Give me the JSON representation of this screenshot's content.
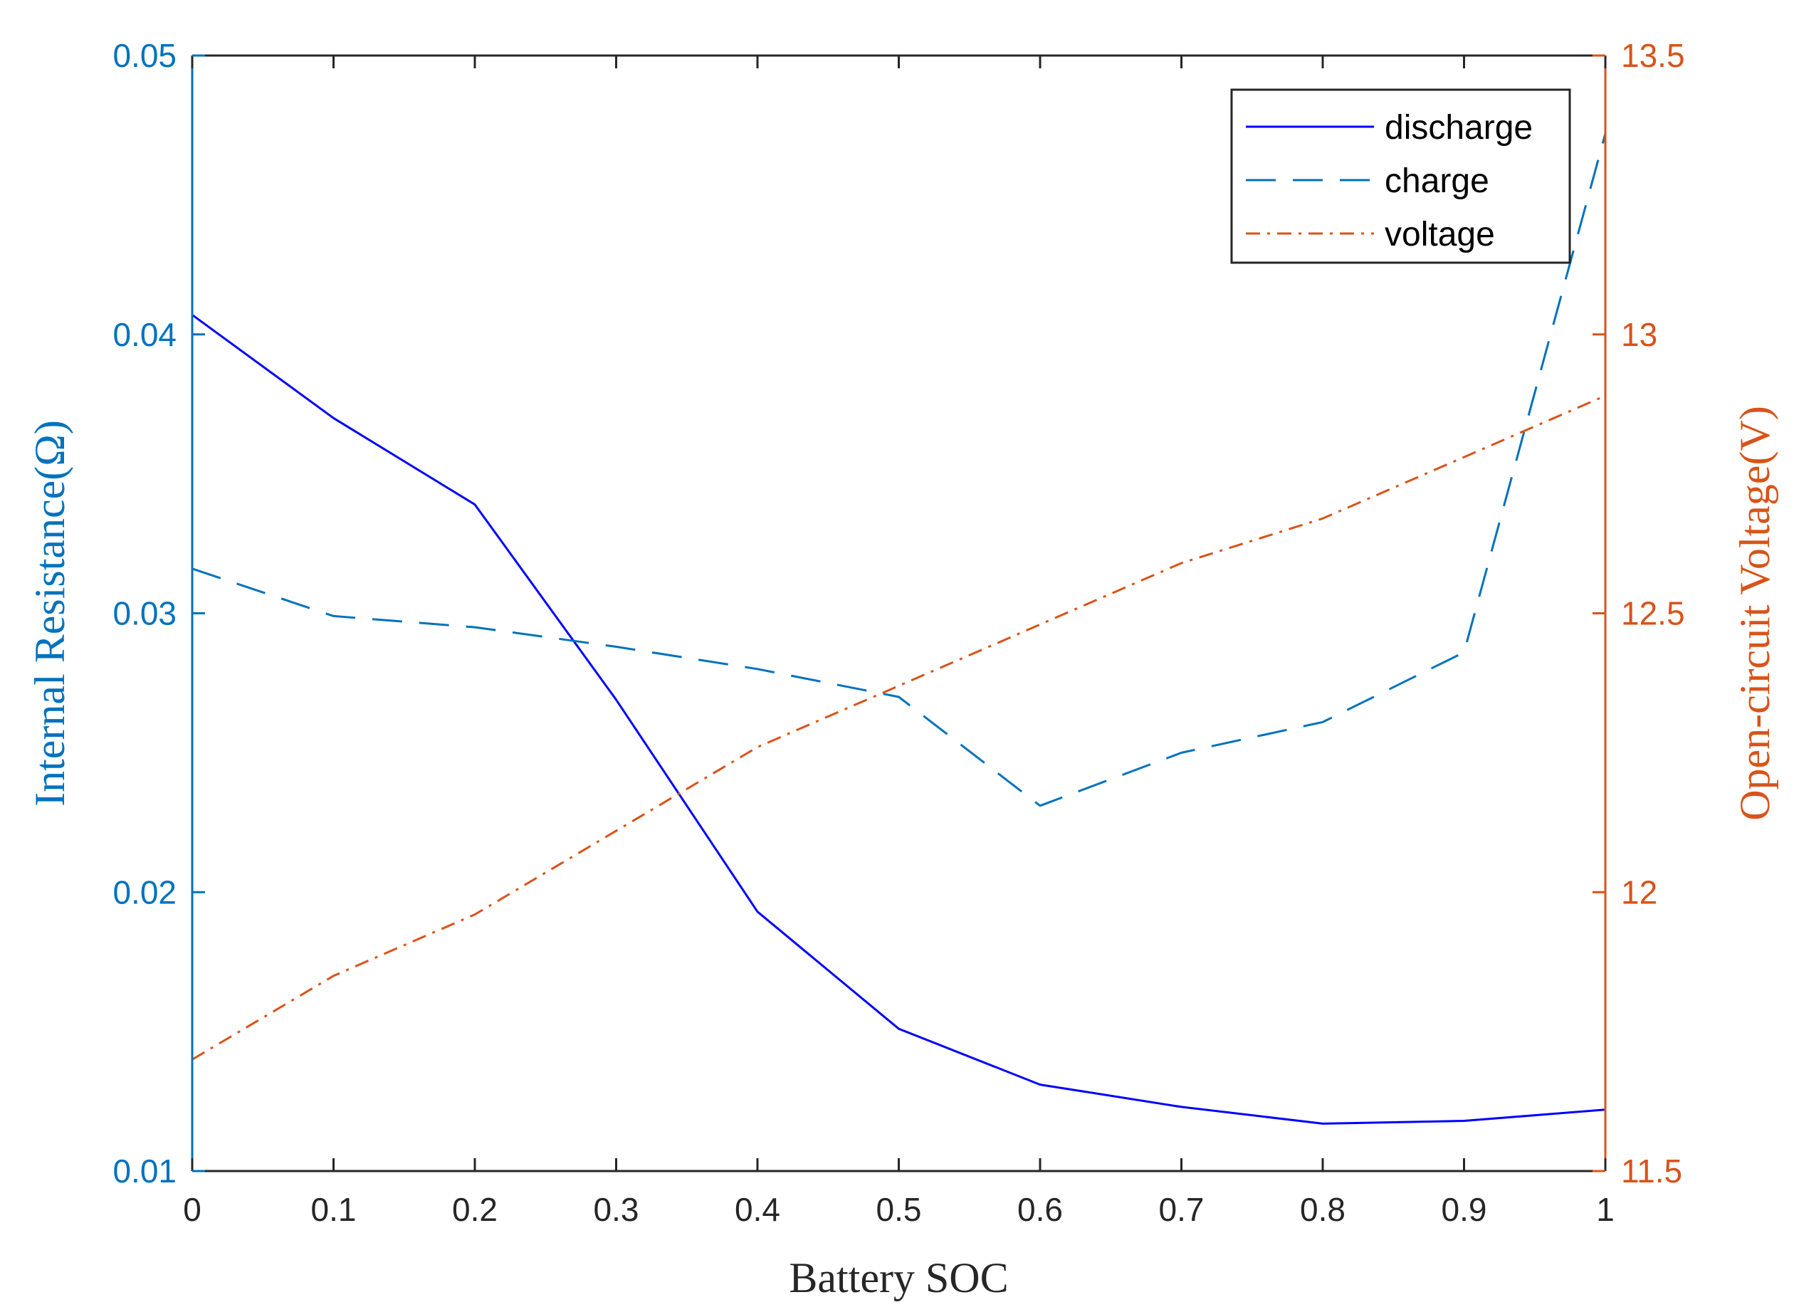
{
  "chart_data": {
    "type": "line",
    "title": "",
    "xlabel": "Battery SOC",
    "ylabel_left": "Internal Resistance(Ω)",
    "ylabel_right": "Open-circuit Voltage(V)",
    "xlim": [
      0,
      1
    ],
    "ylim_left": [
      0.01,
      0.05
    ],
    "ylim_right": [
      11.5,
      13.5
    ],
    "x_ticks": [
      0,
      0.1,
      0.2,
      0.3,
      0.4,
      0.5,
      0.6,
      0.7,
      0.8,
      0.9,
      1
    ],
    "x_tick_labels": [
      "0",
      "0.1",
      "0.2",
      "0.3",
      "0.4",
      "0.5",
      "0.6",
      "0.7",
      "0.8",
      "0.9",
      "1"
    ],
    "y_left_ticks": [
      0.01,
      0.02,
      0.03,
      0.04,
      0.05
    ],
    "y_left_tick_labels": [
      "0.01",
      "0.02",
      "0.03",
      "0.04",
      "0.05"
    ],
    "y_right_ticks": [
      11.5,
      12,
      12.5,
      13,
      13.5
    ],
    "y_right_tick_labels": [
      "11.5",
      "12",
      "12.5",
      "13",
      "13.5"
    ],
    "grid": false,
    "legend_position": "top-right",
    "x": [
      0,
      0.1,
      0.2,
      0.3,
      0.4,
      0.5,
      0.6,
      0.7,
      0.8,
      0.9,
      1
    ],
    "series": [
      {
        "name": "discharge",
        "axis": "left",
        "style": "solid",
        "color": "#0000ff",
        "values": [
          0.0407,
          0.037,
          0.0339,
          0.0269,
          0.0193,
          0.0151,
          0.0131,
          0.0123,
          0.0117,
          0.0118,
          0.0122
        ]
      },
      {
        "name": "charge",
        "axis": "left",
        "style": "dashed",
        "color": "#0072bd",
        "values": [
          0.0316,
          0.0299,
          0.0295,
          0.0288,
          0.028,
          0.027,
          0.0231,
          0.025,
          0.0261,
          0.0286,
          0.0472
        ]
      },
      {
        "name": "voltage",
        "axis": "right",
        "style": "dash-dot",
        "color": "#d95319",
        "values": [
          11.7,
          11.85,
          11.96,
          12.11,
          12.26,
          12.37,
          12.48,
          12.59,
          12.67,
          12.78,
          12.89
        ]
      }
    ]
  }
}
